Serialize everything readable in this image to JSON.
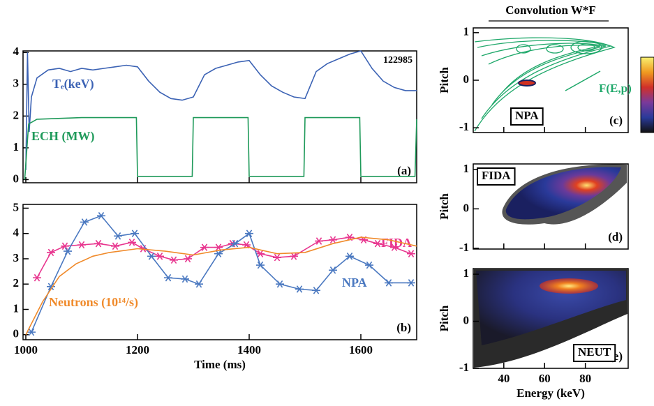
{
  "chart_data": [
    {
      "type": "line",
      "panel": "(a)",
      "annotations": [
        "122985"
      ],
      "xlim": [
        995,
        1700
      ],
      "ylim": [
        -0.1,
        4.05
      ],
      "yticks": [
        0,
        1,
        2,
        3,
        4
      ],
      "series": [
        {
          "name": "Tₑ(keV)",
          "color": "#3b62b4",
          "x": [
            1000,
            1003,
            1006,
            1010,
            1020,
            1040,
            1060,
            1080,
            1100,
            1120,
            1140,
            1160,
            1180,
            1200,
            1220,
            1240,
            1260,
            1280,
            1300,
            1320,
            1340,
            1360,
            1380,
            1400,
            1420,
            1440,
            1460,
            1480,
            1500,
            1520,
            1540,
            1560,
            1580,
            1600,
            1620,
            1640,
            1660,
            1680,
            1700
          ],
          "values": [
            0.3,
            4.0,
            1.5,
            2.6,
            3.2,
            3.45,
            3.5,
            3.4,
            3.5,
            3.45,
            3.5,
            3.55,
            3.6,
            3.55,
            3.1,
            2.75,
            2.55,
            2.5,
            2.6,
            3.3,
            3.5,
            3.6,
            3.7,
            3.75,
            3.3,
            2.95,
            2.75,
            2.6,
            2.55,
            3.4,
            3.65,
            3.8,
            3.95,
            4.05,
            3.5,
            3.1,
            2.9,
            2.8,
            2.8
          ]
        },
        {
          "name": "ECH (MW)",
          "color": "#1f9a5a",
          "x": [
            998,
            1005,
            1020,
            1100,
            1198,
            1200,
            1298,
            1300,
            1398,
            1400,
            1498,
            1500,
            1598,
            1600,
            1697,
            1700
          ],
          "values": [
            0,
            1.75,
            1.9,
            1.95,
            1.95,
            0.1,
            0.1,
            1.95,
            1.95,
            0.1,
            0.1,
            1.95,
            1.95,
            0.1,
            0.1,
            1.9
          ]
        }
      ]
    },
    {
      "type": "line",
      "panel": "(b)",
      "xlabel": "Time (ms)",
      "xlim": [
        995,
        1700
      ],
      "xticks": [
        1000,
        1200,
        1400,
        1600
      ],
      "ylim": [
        -0.2,
        5.15
      ],
      "yticks": [
        0,
        1,
        2,
        3,
        4,
        5
      ],
      "series": [
        {
          "name": "FIDA",
          "color": "#e8368f",
          "markers": true,
          "x": [
            1020,
            1045,
            1070,
            1100,
            1130,
            1160,
            1190,
            1210,
            1240,
            1265,
            1290,
            1320,
            1345,
            1370,
            1395,
            1420,
            1450,
            1480,
            1525,
            1550,
            1580,
            1605,
            1630,
            1660,
            1690
          ],
          "values": [
            2.25,
            3.25,
            3.5,
            3.55,
            3.6,
            3.5,
            3.65,
            3.4,
            3.1,
            2.95,
            3.0,
            3.45,
            3.45,
            3.6,
            3.55,
            3.2,
            3.05,
            3.1,
            3.7,
            3.75,
            3.85,
            3.75,
            3.6,
            3.45,
            3.2
          ]
        },
        {
          "name": "NPA",
          "color": "#4a78c0",
          "markers": true,
          "x": [
            1010,
            1045,
            1075,
            1105,
            1135,
            1165,
            1195,
            1225,
            1255,
            1285,
            1310,
            1345,
            1375,
            1400,
            1420,
            1455,
            1490,
            1520,
            1550,
            1580,
            1615,
            1650,
            1690
          ],
          "values": [
            0.1,
            1.9,
            3.3,
            4.45,
            4.7,
            3.9,
            4.0,
            3.1,
            2.25,
            2.2,
            2.0,
            3.2,
            3.6,
            4.0,
            2.75,
            2.0,
            1.8,
            1.75,
            2.55,
            3.1,
            2.75,
            2.05,
            2.05
          ]
        },
        {
          "name": "Neutrons (10¹⁴/s)",
          "color": "#f08a2a",
          "markers": false,
          "x": [
            1000,
            1030,
            1060,
            1090,
            1120,
            1150,
            1200,
            1250,
            1300,
            1350,
            1400,
            1450,
            1500,
            1550,
            1600,
            1650,
            1700
          ],
          "values": [
            0,
            1.3,
            2.3,
            2.8,
            3.1,
            3.25,
            3.4,
            3.3,
            3.15,
            3.35,
            3.45,
            3.2,
            3.25,
            3.6,
            3.85,
            3.75,
            3.5
          ]
        }
      ]
    },
    {
      "type": "heatmap",
      "title": "Convolution W*F",
      "panel": "(c)",
      "label": "NPA",
      "annotations": [
        "F(E,p)"
      ],
      "ylabel": "Pitch",
      "xlim": [
        25,
        101
      ],
      "ylim": [
        -1.1,
        1.1
      ],
      "yticks": [
        -1,
        0,
        1
      ]
    },
    {
      "type": "heatmap",
      "panel": "(d)",
      "label": "FIDA",
      "ylabel": "Pitch",
      "xlim": [
        25,
        101
      ],
      "ylim": [
        -1.02,
        1.14
      ],
      "yticks": [
        -1,
        0,
        1
      ]
    },
    {
      "type": "heatmap",
      "panel": "(e)",
      "label": "NEUT",
      "ylabel": "Pitch",
      "xlabel": "Energy (keV)",
      "xlim": [
        25,
        101
      ],
      "xticks": [
        40,
        60,
        80
      ],
      "ylim": [
        -1.0,
        1.12
      ],
      "yticks": [
        -1,
        0,
        1
      ]
    }
  ]
}
